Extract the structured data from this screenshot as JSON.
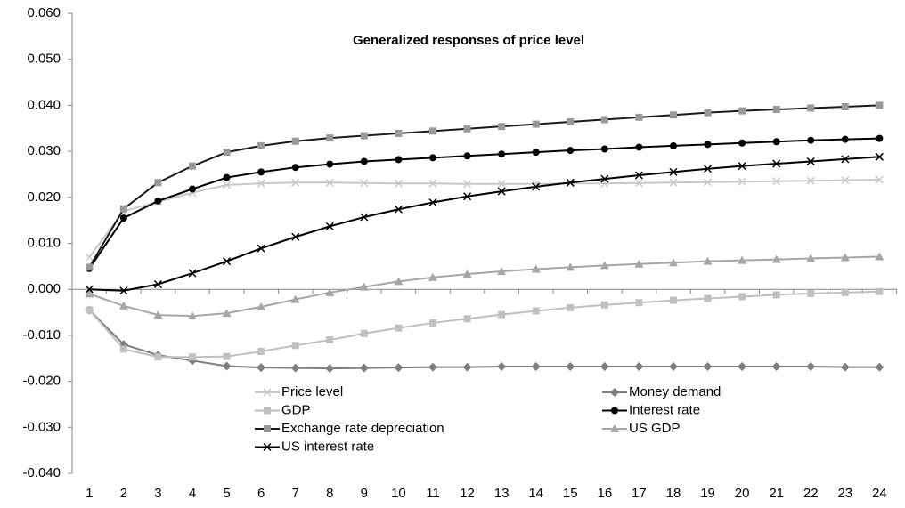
{
  "chart_data": {
    "type": "line",
    "title": "Generalized responses of price level",
    "categories": [
      1,
      2,
      3,
      4,
      5,
      6,
      7,
      8,
      9,
      10,
      11,
      12,
      13,
      14,
      15,
      16,
      17,
      18,
      19,
      20,
      21,
      22,
      23,
      24
    ],
    "ylim": [
      -0.04,
      0.06
    ],
    "yticks": [
      {
        "value": -0.04,
        "label": "-0.040"
      },
      {
        "value": -0.03,
        "label": "-0.030"
      },
      {
        "value": -0.02,
        "label": "-0.020"
      },
      {
        "value": -0.01,
        "label": "-0.010"
      },
      {
        "value": 0,
        "label": "0.000"
      },
      {
        "value": 0.01,
        "label": "0.010"
      },
      {
        "value": 0.02,
        "label": "0.020"
      },
      {
        "value": 0.03,
        "label": "0.030"
      },
      {
        "value": 0.04,
        "label": "0.040"
      },
      {
        "value": 0.05,
        "label": "0.050"
      },
      {
        "value": 0.06,
        "label": "0.060"
      }
    ],
    "grid": false,
    "series": [
      {
        "name": "Price level",
        "color": "#c8c8c8",
        "marker": "x",
        "values": [
          0.007,
          0.017,
          0.019,
          0.021,
          0.0227,
          0.023,
          0.0232,
          0.0232,
          0.0231,
          0.023,
          0.023,
          0.0229,
          0.0229,
          0.0229,
          0.023,
          0.023,
          0.0231,
          0.0232,
          0.0233,
          0.0234,
          0.0235,
          0.0236,
          0.0237,
          0.0238
        ]
      },
      {
        "name": "Money demand",
        "color": "#7f7f7f",
        "marker": "diamond",
        "values": [
          -0.0045,
          -0.012,
          -0.0143,
          -0.0155,
          -0.0167,
          -0.017,
          -0.0171,
          -0.0172,
          -0.0171,
          -0.017,
          -0.0169,
          -0.0169,
          -0.0168,
          -0.0168,
          -0.0168,
          -0.0168,
          -0.0168,
          -0.0168,
          -0.0168,
          -0.0168,
          -0.0168,
          -0.0168,
          -0.0169,
          -0.0169
        ]
      },
      {
        "name": "GDP",
        "color": "#c0c0c0",
        "marker": "square",
        "values": [
          -0.0045,
          -0.013,
          -0.0147,
          -0.0147,
          -0.0146,
          -0.0135,
          -0.0122,
          -0.011,
          -0.0096,
          -0.0084,
          -0.0073,
          -0.0064,
          -0.0055,
          -0.0047,
          -0.004,
          -0.0034,
          -0.0029,
          -0.0024,
          -0.002,
          -0.0016,
          -0.0012,
          -0.0009,
          -0.0007,
          -0.0005
        ]
      },
      {
        "name": "Interest rate",
        "color": "#000000",
        "marker": "circle",
        "values": [
          0.0045,
          0.0155,
          0.0192,
          0.0218,
          0.0243,
          0.0255,
          0.0265,
          0.0272,
          0.0278,
          0.0282,
          0.0286,
          0.029,
          0.0294,
          0.0298,
          0.0302,
          0.0305,
          0.0309,
          0.0312,
          0.0315,
          0.0318,
          0.0321,
          0.0324,
          0.0326,
          0.0328
        ]
      },
      {
        "name": "Exchange rate depreciation",
        "color": "#1a1a1a",
        "marker_color": "#999999",
        "marker": "square",
        "values": [
          0.0048,
          0.0175,
          0.0232,
          0.0268,
          0.0298,
          0.0312,
          0.0322,
          0.0329,
          0.0334,
          0.0339,
          0.0344,
          0.0349,
          0.0354,
          0.0359,
          0.0364,
          0.0369,
          0.0374,
          0.0379,
          0.0384,
          0.0388,
          0.0391,
          0.0394,
          0.0397,
          0.04
        ]
      },
      {
        "name": "US GDP",
        "color": "#a6a6a6",
        "marker": "triangle",
        "values": [
          -0.001,
          -0.0036,
          -0.0056,
          -0.0058,
          -0.0052,
          -0.0038,
          -0.0022,
          -0.0007,
          0.0005,
          0.0017,
          0.0026,
          0.0033,
          0.0039,
          0.0044,
          0.0048,
          0.0052,
          0.0055,
          0.0058,
          0.0061,
          0.0063,
          0.0065,
          0.0067,
          0.0069,
          0.0071
        ]
      },
      {
        "name": "US interest rate",
        "color": "#000000",
        "marker": "x",
        "values": [
          0.0,
          -0.0003,
          0.0011,
          0.0035,
          0.0061,
          0.0089,
          0.0114,
          0.0137,
          0.0157,
          0.0174,
          0.0189,
          0.0202,
          0.0213,
          0.0223,
          0.0232,
          0.024,
          0.0248,
          0.0255,
          0.0262,
          0.0268,
          0.0273,
          0.0278,
          0.0283,
          0.0288
        ]
      }
    ]
  }
}
